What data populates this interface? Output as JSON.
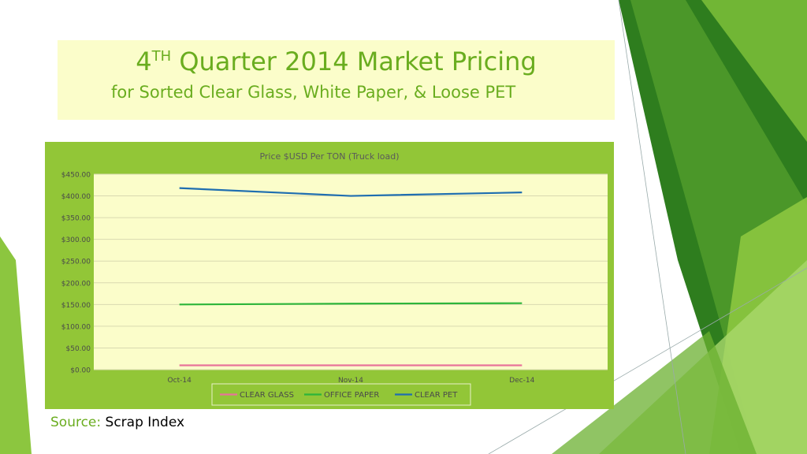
{
  "slide": {
    "title_main": "4",
    "title_sup": "TH",
    "title_rest": " Quarter 2014 Market Pricing",
    "subtitle": "for Sorted  Clear Glass, White Paper, & Loose PET"
  },
  "source": {
    "label": "Source:",
    "value": "Scrap Index"
  },
  "colors": {
    "accent_green": "#6aad1f",
    "chart_bg": "#92c637",
    "plot_bg": "#fbfdca",
    "clear_glass": "#e8739a",
    "office_paper": "#2db53a",
    "clear_pet": "#1f6eb0"
  },
  "chart_data": {
    "type": "line",
    "title": "Price $USD Per TON  (Truck load)",
    "categories": [
      "Oct-14",
      "Nov-14",
      "Dec-14"
    ],
    "series": [
      {
        "name": "CLEAR GLASS",
        "values": [
          10,
          10,
          10
        ],
        "color": "#e8739a"
      },
      {
        "name": "OFFICE PAPER",
        "values": [
          150,
          152,
          153
        ],
        "color": "#2db53a"
      },
      {
        "name": "CLEAR PET",
        "values": [
          418,
          400,
          408
        ],
        "color": "#1f6eb0"
      }
    ],
    "ylim": [
      0,
      450
    ],
    "ytick_labels": [
      "$0.00",
      "$50.00",
      "$100.00",
      "$150.00",
      "$200.00",
      "$250.00",
      "$300.00",
      "$350.00",
      "$400.00",
      "$450.00"
    ],
    "grid": true,
    "legend_position": "bottom"
  }
}
